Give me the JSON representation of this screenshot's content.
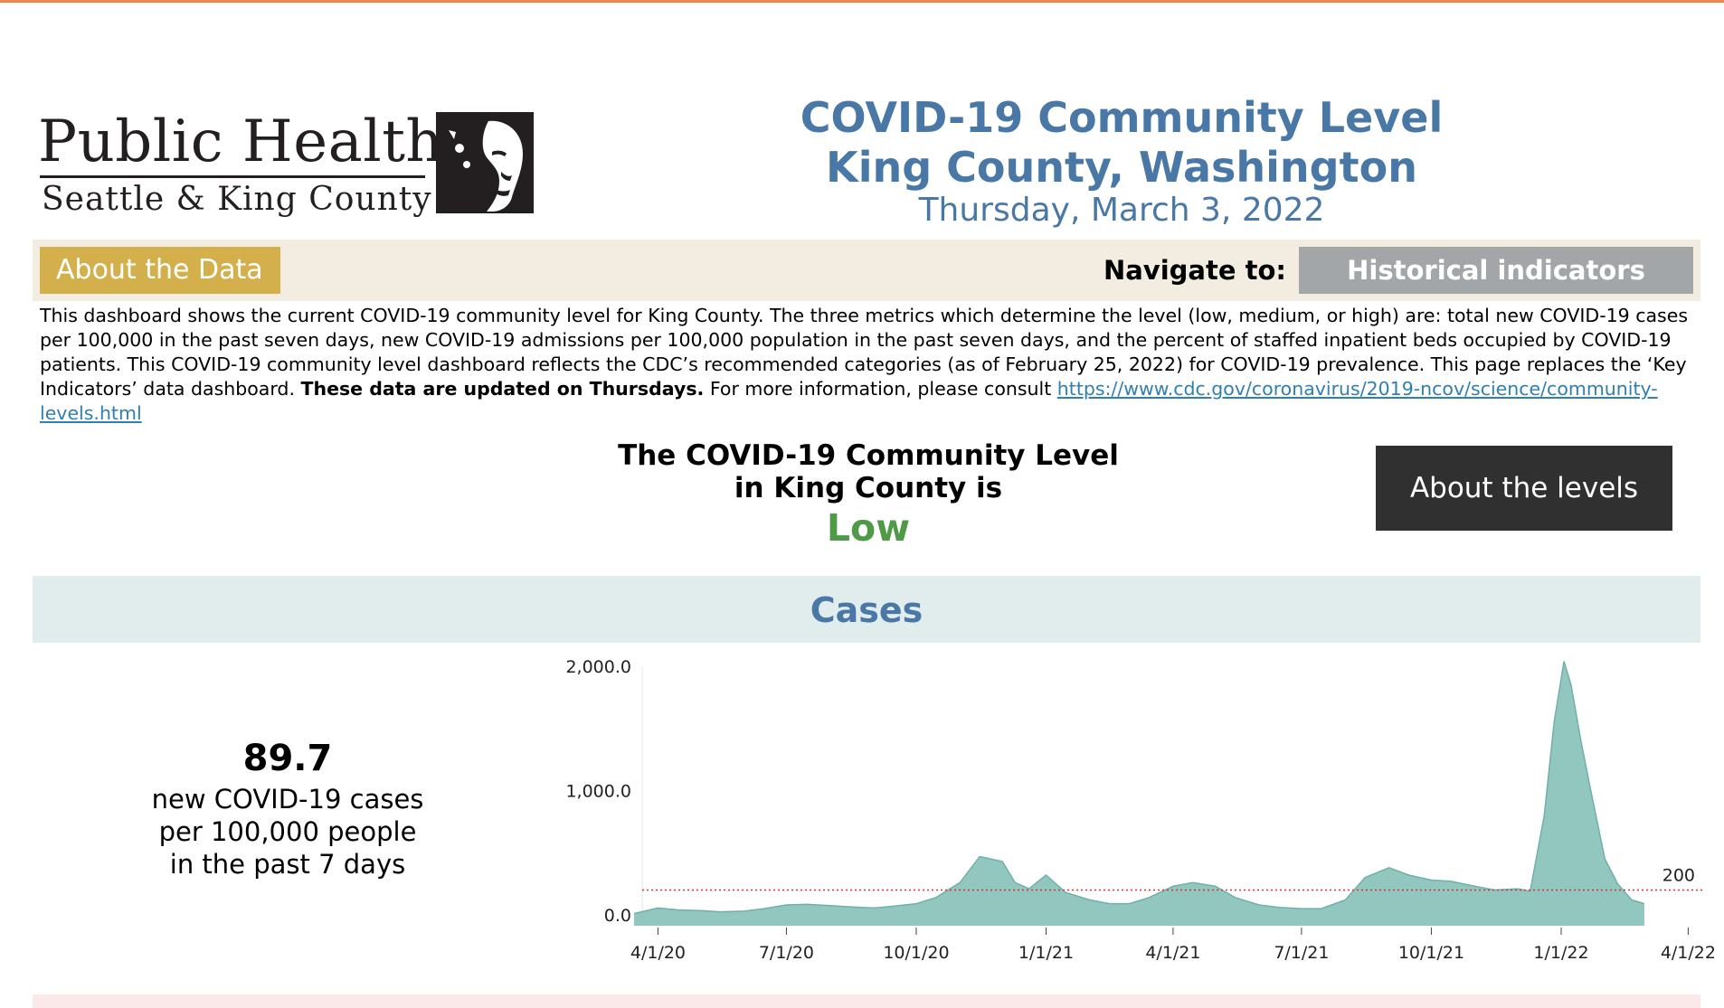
{
  "header": {
    "logo_line1": "Public Health",
    "logo_line2": "Seattle & King County",
    "title_line1": "COVID-19 Community Level",
    "title_line2": "King County, Washington",
    "date": "Thursday, March 3, 2022"
  },
  "nav": {
    "about_data_label": "About the Data",
    "navigate_label": "Navigate to:",
    "historical_label": "Historical indicators"
  },
  "description": {
    "text1": "This dashboard shows the current COVID-19 community level for King County. The three metrics which determine the level (low, medium, or high) are: total new COVID-19 cases per 100,000 in the past seven days, new COVID-19 admissions per 100,000 population in the past seven days, and the percent of staffed inpatient beds occupied by COVID-19 patients. This COVID-19 community level dashboard reflects the CDC’s recommended categories (as of February 25, 2022) for COVID-19 prevalence. This page replaces the ‘Key Indicators’ data dashboard.",
    "bold": "These data are updated on Thursdays.",
    "text2": "For more information, please consult",
    "link": "https://www.cdc.gov/coronavirus/2019-ncov/science/community-levels.html"
  },
  "level": {
    "line1": "The COVID-19 Community Level",
    "line2": "in King County is",
    "value": "Low",
    "value_color": "#4f9a46",
    "about_levels_label": "About the levels"
  },
  "cases": {
    "section_title": "Cases",
    "metric_value": "89.7",
    "metric_line1": "new COVID-19 cases",
    "metric_line2": "per 100,000 people",
    "metric_line3": "in the past 7 days"
  },
  "chart_data": {
    "type": "area",
    "title": "",
    "xlabel": "",
    "ylabel": "",
    "ylim": [
      0,
      2000
    ],
    "y_ticks": [
      "2,000.0",
      "1,000.0",
      "0.0"
    ],
    "x_ticks": [
      "4/1/20",
      "7/1/20",
      "10/1/20",
      "1/1/21",
      "4/1/21",
      "7/1/21",
      "10/1/21",
      "1/1/22",
      "4/1/22"
    ],
    "threshold": {
      "value": 200,
      "label": "200",
      "color": "#d9302b",
      "style": "dotted"
    },
    "fill_color": "#8cc4bd",
    "grid": false,
    "series": [
      {
        "x": [
          "2020-03-15",
          "2020-04-01",
          "2020-04-15",
          "2020-05-01",
          "2020-05-15",
          "2020-06-01",
          "2020-06-15",
          "2020-07-01",
          "2020-07-15",
          "2020-08-01",
          "2020-08-15",
          "2020-09-01",
          "2020-09-15",
          "2020-10-01",
          "2020-10-15",
          "2020-11-01",
          "2020-11-15",
          "2020-12-01",
          "2020-12-10",
          "2020-12-20",
          "2021-01-01",
          "2021-01-15",
          "2021-02-01",
          "2021-02-15",
          "2021-03-01",
          "2021-03-15",
          "2021-04-01",
          "2021-04-15",
          "2021-05-01",
          "2021-05-15",
          "2021-06-01",
          "2021-06-15",
          "2021-07-01",
          "2021-07-15",
          "2021-08-01",
          "2021-08-15",
          "2021-09-01",
          "2021-09-15",
          "2021-10-01",
          "2021-10-15",
          "2021-11-01",
          "2021-11-15",
          "2021-12-01",
          "2021-12-10",
          "2021-12-20",
          "2021-12-27",
          "2022-01-03",
          "2022-01-08",
          "2022-01-15",
          "2022-01-22",
          "2022-02-01",
          "2022-02-10",
          "2022-02-20",
          "2022-03-01"
        ],
        "values": [
          10,
          55,
          40,
          35,
          25,
          30,
          50,
          80,
          85,
          75,
          65,
          55,
          70,
          90,
          140,
          260,
          470,
          430,
          260,
          210,
          320,
          180,
          120,
          90,
          90,
          140,
          230,
          260,
          230,
          140,
          80,
          60,
          50,
          50,
          120,
          300,
          380,
          320,
          280,
          270,
          230,
          200,
          210,
          190,
          800,
          1550,
          2040,
          1850,
          1400,
          1000,
          450,
          250,
          120,
          90
        ]
      }
    ]
  }
}
